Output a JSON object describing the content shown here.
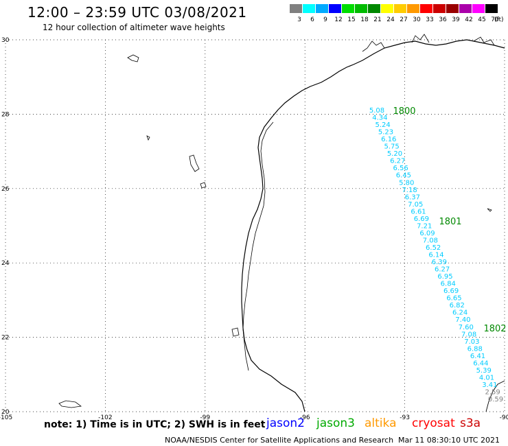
{
  "header": {
    "title": "12:00 – 23:59 UTC 03/08/2021",
    "subtitle": "12 hour collection of altimeter wave heights"
  },
  "legend": {
    "unit": "(ft)",
    "items": [
      {
        "label": "3",
        "color": "#808080"
      },
      {
        "label": "6",
        "color": "#00ffff"
      },
      {
        "label": "9",
        "color": "#00aaff"
      },
      {
        "label": "12",
        "color": "#0000ff"
      },
      {
        "label": "15",
        "color": "#00dd00"
      },
      {
        "label": "18",
        "color": "#00bb00"
      },
      {
        "label": "21",
        "color": "#008800"
      },
      {
        "label": "24",
        "color": "#ffff00"
      },
      {
        "label": "27",
        "color": "#ffcc00"
      },
      {
        "label": "30",
        "color": "#ff9900"
      },
      {
        "label": "33",
        "color": "#ff0000"
      },
      {
        "label": "36",
        "color": "#cc0000"
      },
      {
        "label": "39",
        "color": "#990000"
      },
      {
        "label": "42",
        "color": "#aa00aa"
      },
      {
        "label": "45",
        "color": "#ff00ff"
      },
      {
        "label": "70",
        "color": "#000000"
      }
    ]
  },
  "map": {
    "lon_range": [
      -105,
      -90
    ],
    "lat_range": [
      20,
      30
    ],
    "lon_ticks": [
      "-105",
      "-102",
      "-99",
      "-96",
      "-93",
      "-90"
    ],
    "lat_ticks": [
      "30",
      "28",
      "26",
      "24",
      "22",
      "20"
    ],
    "track_labels": [
      "1800",
      "1801",
      "1802"
    ],
    "track_label_color": "#008800",
    "wave_heights": [
      "5.08",
      "4.34",
      "5.24",
      "5.23",
      "6.16",
      "5.75",
      "5.20",
      "6.27",
      "6.56",
      "6.45",
      "5.80",
      "7.18",
      "6.37",
      "7.05",
      "6.61",
      "6.69",
      "7.21",
      "6.09",
      "7.08",
      "6.52",
      "6.14",
      "6.39",
      "6.27",
      "6.95",
      "6.84",
      "6.69",
      "6.65",
      "6.82",
      "6.24",
      "7.40",
      "7.60",
      "7.08",
      "7.03",
      "6.88",
      "6.41",
      "6.44",
      "5.39",
      "4.01",
      "3.41",
      "2.59",
      "0.59"
    ],
    "wave_colors": [
      "#00ccff",
      "#00ccff",
      "#00ccff",
      "#00ccff",
      "#00ccff",
      "#00ccff",
      "#00ccff",
      "#00ccff",
      "#00ccff",
      "#00ccff",
      "#00ccff",
      "#00ccff",
      "#00ccff",
      "#00ccff",
      "#00ccff",
      "#00ccff",
      "#00ccff",
      "#00ccff",
      "#00ccff",
      "#00ccff",
      "#00ccff",
      "#00ccff",
      "#00ccff",
      "#00ccff",
      "#00ccff",
      "#00ccff",
      "#00ccff",
      "#00ccff",
      "#00ccff",
      "#00ccff",
      "#00ccff",
      "#00ccff",
      "#00ccff",
      "#00ccff",
      "#00ccff",
      "#00ccff",
      "#00ccff",
      "#00ccff",
      "#00ccff",
      "#808080",
      "#808080"
    ]
  },
  "notes": {
    "text": "note:  1) Time is in UTC;  2) SWH is in feet"
  },
  "satellites": [
    {
      "name": "jason2",
      "color": "#0000ff"
    },
    {
      "name": "jason3",
      "color": "#00aa00"
    },
    {
      "name": "altika",
      "color": "#ff9900"
    },
    {
      "name": "cryosat",
      "color": "#ff0000"
    },
    {
      "name": "s3a",
      "color": "#cc0000"
    }
  ],
  "footer": {
    "credit": "NOAA/NESDIS Center for Satellite Applications and Research",
    "timestamp": "Mar 11 08:30:10 UTC 2021"
  }
}
